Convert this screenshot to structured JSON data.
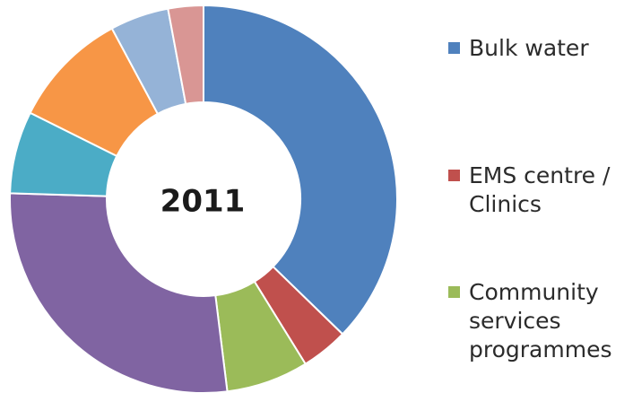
{
  "chart_data": {
    "type": "pie",
    "donut": true,
    "center_label": "2011",
    "legend_position": "right",
    "slices": [
      {
        "label": "Bulk water",
        "value": 38.0,
        "color": "#4F81BD",
        "in_legend": true
      },
      {
        "label": "EMS centre / Clinics",
        "value": 4.0,
        "color": "#C0504D",
        "in_legend": true
      },
      {
        "label": "Community services programmes",
        "value": 7.0,
        "color": "#9BBB59",
        "in_legend": true
      },
      {
        "label": "",
        "value": 28.0,
        "color": "#8064A2",
        "in_legend": false
      },
      {
        "label": "",
        "value": 7.0,
        "color": "#4BACC6",
        "in_legend": false
      },
      {
        "label": "",
        "value": 10.0,
        "color": "#F79646",
        "in_legend": false
      },
      {
        "label": "",
        "value": 5.0,
        "color": "#95B3D7",
        "in_legend": false
      },
      {
        "label": "",
        "value": 3.0,
        "color": "#D99694",
        "in_legend": false
      }
    ]
  },
  "legend": {
    "items": [
      {
        "text": "Bulk water",
        "color": "#4F81BD"
      },
      {
        "text": "EMS centre /\nClinics",
        "color": "#C0504D"
      },
      {
        "text": "Community\nservices\nprogrammes",
        "color": "#9BBB59"
      }
    ]
  }
}
